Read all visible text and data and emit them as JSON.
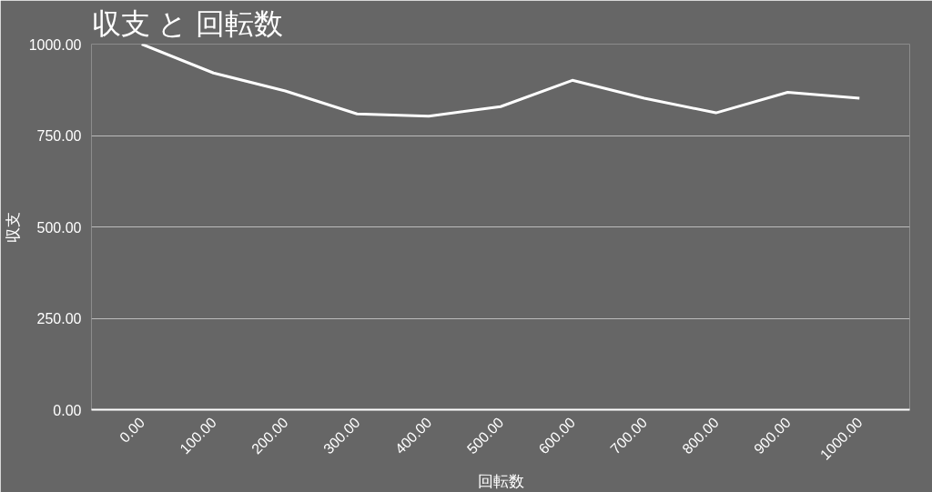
{
  "chart_data": {
    "type": "line",
    "title": "収支 と 回転数",
    "xlabel": "回転数",
    "ylabel": "収支",
    "categories": [
      "0.00",
      "100.00",
      "200.00",
      "300.00",
      "400.00",
      "500.00",
      "600.00",
      "700.00",
      "800.00",
      "900.00",
      "1000.00"
    ],
    "series": [
      {
        "color": "#ffffff",
        "values": [
          1000,
          921,
          872,
          809,
          803,
          829,
          901,
          852,
          812,
          868,
          852
        ]
      }
    ],
    "ylim": [
      0,
      1000
    ],
    "yticks": [
      {
        "value": 0,
        "label": "0.00"
      },
      {
        "value": 250,
        "label": "250.00"
      },
      {
        "value": 500,
        "label": "500.00"
      },
      {
        "value": 750,
        "label": "750.00"
      },
      {
        "value": 1000,
        "label": "1000.00"
      }
    ],
    "grid": "y",
    "marker": "none",
    "line_style": "solid"
  }
}
